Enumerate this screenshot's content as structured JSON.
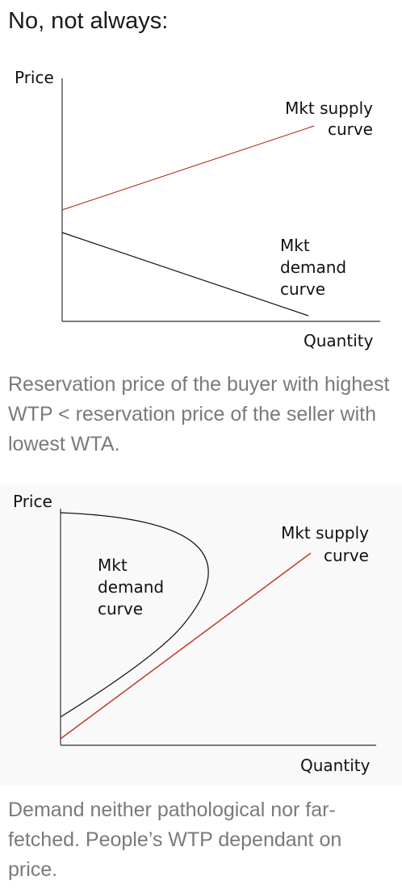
{
  "heading": "No, not always:",
  "diagram1": {
    "price_label": "Price",
    "quantity_label": "Quantity",
    "supply_label": [
      "Mkt supply",
      "curve"
    ],
    "demand_label": [
      "Mkt",
      "demand",
      "curve"
    ],
    "colors": {
      "supply": "#c0392b",
      "demand": "#111111",
      "axes": "#333333"
    }
  },
  "caption1": "Reservation price of the buyer with highest WTP < reservation price of the seller with lowest WTA.",
  "diagram2": {
    "price_label": "Price",
    "quantity_label": "Quantity",
    "supply_label": [
      "Mkt supply",
      "curve"
    ],
    "demand_label": [
      "Mkt",
      "demand",
      "curve"
    ],
    "colors": {
      "supply": "#c0392b",
      "demand": "#111111",
      "axes": "#333333",
      "background": "#f9f9f9"
    }
  },
  "caption2": "Demand neither pathological nor far-fetched. People’s WTP dependant on price."
}
